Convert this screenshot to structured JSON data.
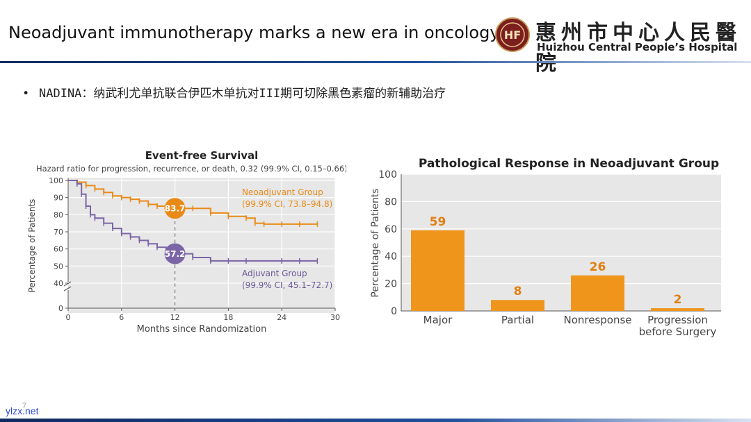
{
  "header": {
    "title": "Neoadjuvant immunotherapy marks a new era in oncology",
    "logo_cn": "惠州市中心人民醫院",
    "logo_en": "Huizhou Central People’s Hospital",
    "logo_seal_text": "HF"
  },
  "bullet": {
    "symbol": "•",
    "text": "NADINA：纳武利尤单抗联合伊匹木单抗对III期可切除黑色素瘤的新辅助治疗"
  },
  "footer": {
    "page_number": "7",
    "watermark": "ylzx.net"
  },
  "colors": {
    "neoadjuvant": "#e98a16",
    "adjuvant": "#7b65a6",
    "bar": "#f0951b",
    "header_blue": "#1f4e9c"
  },
  "chart_data": [
    {
      "type": "line",
      "title": "Event-free Survival",
      "subtitle": "Hazard ratio for progression, recurrence, or death, 0.32 (99.9% CI, 0.15–0.66)",
      "xlabel": "Months since Randomization",
      "ylabel": "Percentage of Patients",
      "x_ticks": [
        0,
        6,
        12,
        18,
        24,
        30
      ],
      "y_ticks": [
        0,
        40,
        50,
        60,
        70,
        80,
        90,
        100
      ],
      "xlim": [
        0,
        30
      ],
      "ylim": [
        0,
        100
      ],
      "y_axis_break": true,
      "grid": true,
      "reference_month": 12,
      "series": [
        {
          "name": "Neoadjuvant Group",
          "ci": "(99.9% CI, 73.8–94.8)",
          "color": "#e98a16",
          "marker_label": "83.7",
          "marker_value": 83.7,
          "x": [
            0,
            1,
            2,
            3,
            4,
            5,
            6,
            7,
            8,
            9,
            10,
            11,
            12,
            14,
            16,
            18,
            20,
            21,
            22,
            24,
            26,
            28
          ],
          "y": [
            100,
            99,
            97,
            95,
            93,
            91,
            90,
            89,
            88,
            86,
            85,
            84,
            83.7,
            83.7,
            81,
            79,
            78,
            75,
            74.5,
            74.5,
            74.5,
            74.5
          ]
        },
        {
          "name": "Adjuvant Group",
          "ci": "(99.9% CI, 45.1–72.7)",
          "color": "#7b65a6",
          "marker_label": "57.2",
          "marker_value": 57.2,
          "x": [
            0,
            1,
            1.5,
            2,
            2.5,
            3,
            4,
            5,
            6,
            7,
            8,
            9,
            10,
            11,
            12,
            14,
            16,
            18,
            20,
            24,
            26,
            28
          ],
          "y": [
            100,
            98,
            92,
            85,
            80,
            78,
            75,
            72,
            69,
            67,
            65,
            63,
            61,
            59,
            57.2,
            55,
            53,
            53,
            53,
            53,
            53,
            53
          ]
        }
      ]
    },
    {
      "type": "bar",
      "title": "Pathological Response in Neoadjuvant Group",
      "ylabel": "Percentage of Patients",
      "categories": [
        "Major",
        "Partial",
        "Nonresponse",
        "Progression before Surgery"
      ],
      "values": [
        59,
        8,
        26,
        2
      ],
      "y_ticks": [
        0,
        20,
        40,
        60,
        80,
        100
      ],
      "ylim": [
        0,
        100
      ],
      "grid": true
    }
  ]
}
